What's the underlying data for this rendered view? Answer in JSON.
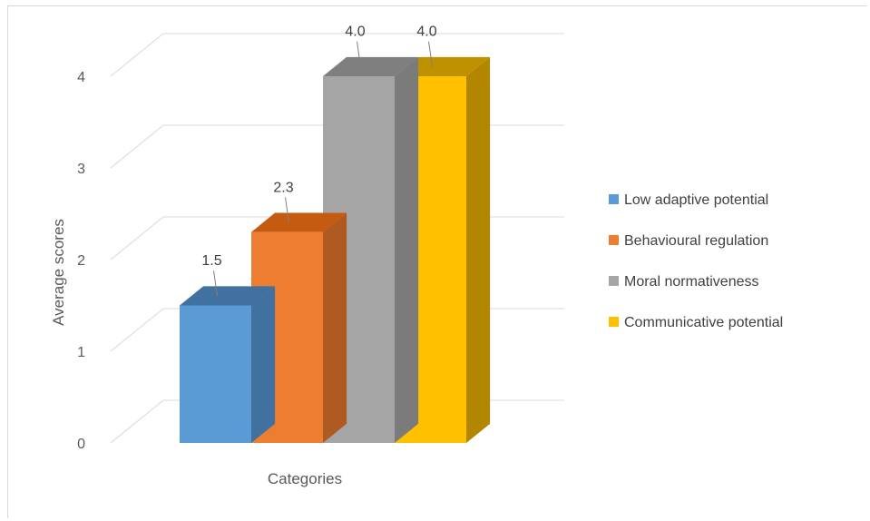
{
  "chart_data": {
    "type": "bar",
    "style": "3d-clustered-column",
    "categories": [
      "Categories"
    ],
    "series": [
      {
        "name": "Low adaptive potential",
        "values": [
          1.5
        ],
        "color": "#5b9bd5",
        "side_color": "#41729f",
        "top_color": "#41729f"
      },
      {
        "name": "Behavioural regulation",
        "values": [
          2.3
        ],
        "color": "#ed7d31",
        "side_color": "#ae5a21",
        "top_color": "#c55a11"
      },
      {
        "name": "Moral normativeness",
        "values": [
          4.0
        ],
        "color": "#a5a5a5",
        "side_color": "#7b7b7b",
        "top_color": "#7f7f7f"
      },
      {
        "name": "Communicative potential",
        "values": [
          4.0
        ],
        "color": "#ffc000",
        "side_color": "#b38600",
        "top_color": "#bf9000"
      }
    ],
    "data_labels": [
      "1.5",
      "2.3",
      "4.0",
      "4.0"
    ],
    "xlabel": "Categories",
    "ylabel": "Average scores",
    "ylim": [
      0,
      4
    ],
    "yticks": [
      "0",
      "1",
      "2",
      "3",
      "4"
    ],
    "grid": true,
    "legend_position": "right"
  }
}
